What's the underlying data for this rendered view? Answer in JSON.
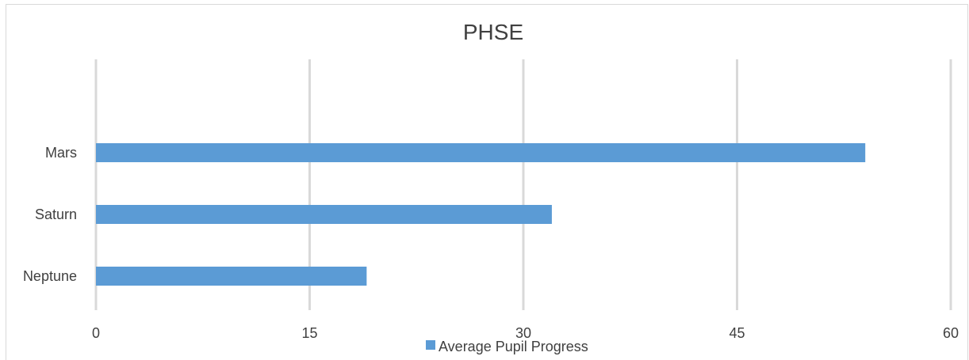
{
  "chart_data": {
    "type": "bar",
    "orientation": "horizontal",
    "title": "PHSE",
    "categories": [
      "Mars",
      "Saturn",
      "Neptune"
    ],
    "series": [
      {
        "name": "Average Pupil Progress",
        "values": [
          54,
          32,
          19
        ],
        "color": "#5b9bd5"
      }
    ],
    "xlim": [
      0,
      60
    ],
    "x_ticks": [
      "0",
      "15",
      "30",
      "45",
      "60"
    ],
    "grid": true,
    "gridline_color": "#d9d9d9",
    "legend_position": "bottom"
  }
}
